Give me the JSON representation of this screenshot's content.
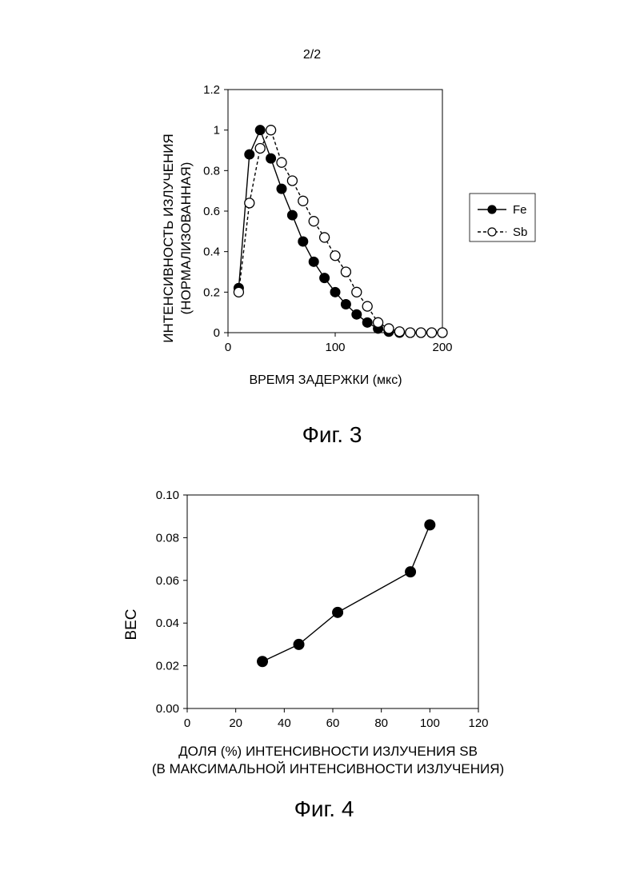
{
  "page_label": "2/2",
  "figures": [
    {
      "caption": "Фиг. 3"
    },
    {
      "caption": "Фиг. 4"
    }
  ],
  "chart_data": [
    {
      "type": "line",
      "title": "",
      "xlabel": "ВРЕМЯ ЗАДЕРЖКИ (мкс)",
      "ylabel": [
        "ИНТЕНСИВНОСТЬ ИЗЛУЧЕНИЯ",
        "(НОРМАЛИЗОВАННАЯ)"
      ],
      "xlim": [
        0,
        200
      ],
      "ylim": [
        0,
        1.2
      ],
      "xticks": [
        0,
        100,
        200
      ],
      "yticks": [
        0,
        0.2,
        0.4,
        0.6,
        0.8,
        1,
        1.2
      ],
      "ytick_labels": [
        "0",
        "0.2",
        "0.4",
        "0.6",
        "0.8",
        "1",
        "1.2"
      ],
      "grid": false,
      "legend": "right",
      "series": [
        {
          "name": "Fe",
          "style": "solid",
          "marker": "filled-circle",
          "points": [
            [
              10,
              0.22
            ],
            [
              20,
              0.88
            ],
            [
              30,
              1.0
            ],
            [
              40,
              0.86
            ],
            [
              50,
              0.71
            ],
            [
              60,
              0.58
            ],
            [
              70,
              0.45
            ],
            [
              80,
              0.35
            ],
            [
              90,
              0.27
            ],
            [
              100,
              0.2
            ],
            [
              110,
              0.14
            ],
            [
              120,
              0.09
            ],
            [
              130,
              0.05
            ],
            [
              140,
              0.02
            ],
            [
              150,
              0.005
            ],
            [
              160,
              0.0
            ],
            [
              170,
              0.0
            ],
            [
              180,
              0.0
            ],
            [
              190,
              0.0
            ],
            [
              200,
              0.0
            ]
          ]
        },
        {
          "name": "Sb",
          "style": "dashed",
          "marker": "open-circle",
          "points": [
            [
              10,
              0.2
            ],
            [
              20,
              0.64
            ],
            [
              30,
              0.91
            ],
            [
              40,
              1.0
            ],
            [
              50,
              0.84
            ],
            [
              60,
              0.75
            ],
            [
              70,
              0.65
            ],
            [
              80,
              0.55
            ],
            [
              90,
              0.47
            ],
            [
              100,
              0.38
            ],
            [
              110,
              0.3
            ],
            [
              120,
              0.2
            ],
            [
              130,
              0.13
            ],
            [
              140,
              0.05
            ],
            [
              150,
              0.02
            ],
            [
              160,
              0.005
            ],
            [
              170,
              0.0
            ],
            [
              180,
              0.0
            ],
            [
              190,
              0.0
            ],
            [
              200,
              0.0
            ]
          ]
        }
      ]
    },
    {
      "type": "line",
      "title": "",
      "xlabel": [
        "ДОЛЯ (%) ИНТЕНСИВНОСТИ ИЗЛУЧЕНИЯ SB",
        "(В МАКСИМАЛЬНОЙ ИНТЕНСИВНОСТИ ИЗЛУЧЕНИЯ)"
      ],
      "ylabel": "BEC",
      "xlim": [
        0,
        120
      ],
      "ylim": [
        0,
        0.1
      ],
      "xticks": [
        0,
        20,
        40,
        60,
        80,
        100,
        120
      ],
      "yticks": [
        0,
        0.02,
        0.04,
        0.06,
        0.08,
        0.1
      ],
      "ytick_labels": [
        "0.00",
        "0.02",
        "0.04",
        "0.06",
        "0.08",
        "0.10"
      ],
      "grid": false,
      "series": [
        {
          "marker": "filled-circle",
          "style": "solid",
          "points": [
            [
              31,
              0.022
            ],
            [
              46,
              0.03
            ],
            [
              62,
              0.045
            ],
            [
              92,
              0.064
            ],
            [
              100,
              0.086
            ]
          ]
        }
      ]
    }
  ]
}
